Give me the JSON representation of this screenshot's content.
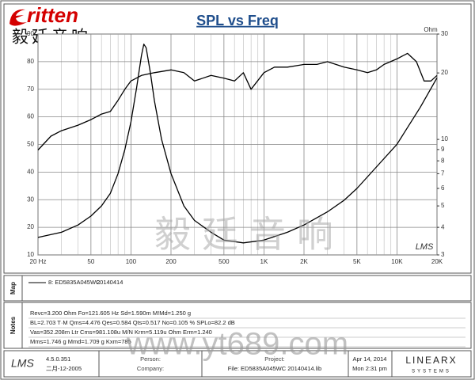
{
  "chart_data": {
    "type": "line",
    "title": "SPL vs Freq",
    "xscale": "log",
    "xlim": [
      20,
      20000
    ],
    "xticks": [
      {
        "value": 20,
        "label": "20 Hz"
      },
      50,
      100,
      200,
      500,
      {
        "value": 1000,
        "label": "1K"
      },
      {
        "value": 2000,
        "label": "2K"
      },
      {
        "value": 5000,
        "label": "5K"
      },
      {
        "value": 10000,
        "label": "10K"
      },
      {
        "value": 20000,
        "label": "20K"
      }
    ],
    "xgrid_minor": [
      30,
      40,
      60,
      70,
      80,
      90,
      300,
      400,
      600,
      700,
      800,
      900,
      3000,
      4000,
      6000,
      7000,
      8000,
      9000
    ],
    "ylim": [
      10,
      90
    ],
    "yticks": [
      10,
      20,
      30,
      40,
      50,
      60,
      70,
      80,
      90
    ],
    "y2label": "Ohm",
    "y2scale": "log",
    "y2lim": [
      3,
      30
    ],
    "y2ticks": [
      3,
      4,
      5,
      6,
      7,
      8,
      9,
      10,
      20,
      30
    ],
    "grid": true,
    "series": [
      {
        "name": "8: ED5835A045WC",
        "color": "#000000",
        "x": [
          20,
          25,
          30,
          40,
          50,
          60,
          70,
          80,
          90,
          100,
          120,
          150,
          200,
          250,
          300,
          400,
          500,
          600,
          700,
          800,
          1000,
          1200,
          1500,
          2000,
          2500,
          3000,
          4000,
          5000,
          6000,
          7000,
          8000,
          10000,
          12000,
          14000,
          16000,
          18000,
          20000
        ],
        "values": [
          48,
          53,
          55,
          57,
          59,
          61,
          62,
          66,
          70,
          73,
          75,
          76,
          77,
          76,
          73,
          75,
          74,
          73,
          76,
          70,
          76,
          78,
          78,
          79,
          79,
          80,
          78,
          77,
          76,
          77,
          79,
          81,
          83,
          80,
          73,
          73,
          75
        ]
      },
      {
        "axis": "y2",
        "color": "#000000",
        "x": [
          20,
          30,
          40,
          50,
          60,
          70,
          80,
          90,
          100,
          110,
          120,
          125,
          130,
          140,
          150,
          170,
          200,
          250,
          300,
          400,
          500,
          700,
          1000,
          1500,
          2000,
          3000,
          4000,
          5000,
          7000,
          10000,
          15000,
          20000
        ],
        "values": [
          3.6,
          3.8,
          4.1,
          4.5,
          5,
          5.7,
          7,
          9,
          12,
          17,
          24,
          27,
          26,
          20,
          15,
          10,
          7,
          5,
          4.3,
          3.8,
          3.5,
          3.4,
          3.5,
          3.8,
          4.1,
          4.7,
          5.3,
          6,
          7.5,
          9.5,
          14,
          19
        ]
      }
    ],
    "legend_note": "20140414",
    "plot_logo": "LMS"
  },
  "header": {
    "logo": "ritten",
    "logo_cn": "毅廷音响"
  },
  "watermark": {
    "cn": "毅廷音响",
    "url": "www.yt689.com"
  },
  "panels": {
    "map": "Map",
    "notes": "Notes"
  },
  "notes": [
    "Revc=3.200 Ohm  Fo=121.605 Hz  Sd=1.590m M!Md=1.250 g",
    "BL=2.703 T·M  Qms=4.476  Qes=0.584  Qts=0.517  No=0.105 %  SPLo=82.2 dB",
    "Vas=352.208m Ltr  Cms=981.108u M/N  Krm=5.119u Ohm  Erm=1.240",
    "Mms=1.746 g  Mmd=1.709 g  Kxm=785"
  ],
  "footer": {
    "logo": "LMS",
    "version": "4.5.0.351",
    "date": "二月-12-2005",
    "person": "Person:",
    "company": "Company:",
    "project": "Project:",
    "file": "File: ED5835A045WC 20140414.lib",
    "day": "Apr 14, 2014",
    "time": "Mon  2:31 pm",
    "brand": "LINEARX",
    "brand_sub": "SYSTEMS"
  }
}
